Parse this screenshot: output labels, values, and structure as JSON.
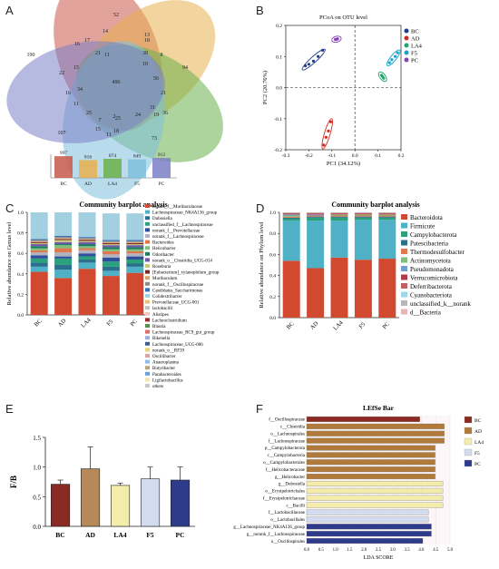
{
  "panel_labels": {
    "a": "A",
    "b": "B",
    "c": "C",
    "d": "D",
    "e": "E",
    "f": "F"
  },
  "colors": {
    "BC": "#c8584a",
    "AD": "#e8b04f",
    "LA4": "#6ab04c",
    "F5": "#7ec0dc",
    "PC": "#7a7fc6",
    "BC_dark": "#8b2a22",
    "AD_dark": "#b07a3a",
    "LA4_light": "#f3ecaa",
    "F5_light": "#d3dcef",
    "PC_dark": "#2e3a8a"
  },
  "venn": {
    "groups": [
      "BC",
      "AD",
      "LA4",
      "F5",
      "PC"
    ],
    "numbers": [
      "52",
      "14",
      "13",
      "18",
      "190",
      "16",
      "17",
      "11",
      "21",
      "8",
      "94",
      "38",
      "10",
      "56",
      "22",
      "15",
      "496",
      "21",
      "16",
      "34",
      "11",
      "31",
      "36",
      "25",
      "7",
      "2",
      "25",
      "24",
      "19",
      "107",
      "15",
      "11",
      "18",
      "73"
    ],
    "bar_values": [
      "997",
      "816",
      "874",
      "849",
      "912"
    ]
  },
  "chart_data": [
    {
      "type": "scatter",
      "title": "PCoA on OTU level",
      "xlabel": "PC1 (34.12%)",
      "ylabel": "PC2 (20.76%)",
      "xlim": [
        -0.3,
        0.2
      ],
      "ylim": [
        -0.2,
        0.2
      ],
      "xticks": [
        "-0.3",
        "-0.2",
        "-0.1",
        "0.0",
        "0.1",
        "0.2"
      ],
      "yticks": [
        "-0.2",
        "-0.1",
        "0.0",
        "0.1",
        "0.2"
      ],
      "series": [
        {
          "name": "BC",
          "points": [
            [
              -0.14,
              0.12
            ],
            [
              -0.16,
              0.1
            ],
            [
              -0.18,
              0.085
            ],
            [
              -0.2,
              0.075
            ],
            [
              -0.215,
              0.07
            ]
          ]
        },
        {
          "name": "AD",
          "points": [
            [
              -0.105,
              -0.11
            ],
            [
              -0.115,
              -0.14
            ],
            [
              -0.125,
              -0.16
            ],
            [
              -0.135,
              -0.185
            ]
          ]
        },
        {
          "name": "LA4",
          "points": [
            [
              0.115,
              0.04
            ],
            [
              0.12,
              0.035
            ],
            [
              0.125,
              0.03
            ]
          ]
        },
        {
          "name": "F5",
          "points": [
            [
              0.15,
              0.08
            ],
            [
              0.16,
              0.09
            ],
            [
              0.175,
              0.1
            ],
            [
              0.185,
              0.112
            ]
          ]
        },
        {
          "name": "PC",
          "points": [
            [
              -0.085,
              0.155
            ],
            [
              -0.08,
              0.155
            ],
            [
              -0.075,
              0.157
            ]
          ]
        }
      ]
    },
    {
      "type": "bar",
      "stacked": true,
      "title": "Community barplot analysis",
      "ylabel": "Relative abundance on Genus level",
      "categories": [
        "BC",
        "AD",
        "LA4",
        "F5",
        "PC"
      ],
      "yticks": [
        "0.0",
        "0.2",
        "0.4",
        "0.6",
        "0.8",
        "1.0"
      ],
      "legend": [
        "norank_f__Muribaculaceae",
        "Lachnospiraceae_NK4A136_group",
        "Dubosiella",
        "unclassified_f__Lachnospiraceae",
        "norank_f__Prevotellaceae",
        "norank_f__Lachnospiraceae",
        "Bacteroides",
        "Helicobacter",
        "Odoribacter",
        "norank_o__Clostridia_UCG-014",
        "Roseburia",
        "[Eubacterium]_xylanophilum_group",
        "Muribaculum",
        "norank_f__Oscillospiraceae",
        "Candidatus_Saccharimonas",
        "Colidextribacter",
        "Prevotellaceae_UCG-001",
        "lactobacilli",
        "Alistipes",
        "Lachnoclostridium",
        "Blautia",
        "Lachnospiraceae_RC9_gut_group",
        "Rikenella",
        "Lachnospiraceae_UCG-006",
        "norank_o__RF39",
        "Oscillibacter",
        "Anaeroplasma",
        "Butyribacter",
        "Parabacteroides",
        "Ligilactobacillus",
        "others"
      ],
      "series": [
        {
          "name": "norank_f__Muribaculaceae",
          "values": [
            0.42,
            0.36,
            0.45,
            0.38,
            0.41
          ]
        },
        {
          "name": "Lachnospiraceae_NK4A136_group",
          "values": [
            0.05,
            0.08,
            0.06,
            0.05,
            0.06
          ]
        },
        {
          "name": "Dubosiella",
          "values": [
            0.04,
            0.05,
            0.03,
            0.04,
            0.03
          ]
        },
        {
          "name": "unclassified_f__Lachnospiraceae",
          "values": [
            0.04,
            0.06,
            0.03,
            0.05,
            0.04
          ]
        },
        {
          "name": "norank_f__Prevotellaceae",
          "values": [
            0.03,
            0.02,
            0.03,
            0.04,
            0.03
          ]
        },
        {
          "name": "norank_f__Lachnospiraceae",
          "values": [
            0.03,
            0.04,
            0.03,
            0.03,
            0.03
          ]
        },
        {
          "name": "Bacteroides",
          "values": [
            0.02,
            0.04,
            0.02,
            0.03,
            0.02
          ]
        },
        {
          "name": "Helicobacter",
          "values": [
            0.02,
            0.03,
            0.02,
            0.02,
            0.02
          ]
        },
        {
          "name": "Odoribacter",
          "values": [
            0.02,
            0.01,
            0.02,
            0.02,
            0.02
          ]
        },
        {
          "name": "norank_o__Clostridia_UCG-014",
          "values": [
            0.02,
            0.02,
            0.02,
            0.02,
            0.02
          ]
        },
        {
          "name": "Roseburia",
          "values": [
            0.01,
            0.02,
            0.01,
            0.01,
            0.01
          ]
        },
        {
          "name": "[Eubacterium]_xylanophilum_group",
          "values": [
            0.01,
            0.01,
            0.01,
            0.01,
            0.01
          ]
        },
        {
          "name": "Muribaculum",
          "values": [
            0.01,
            0.01,
            0.01,
            0.01,
            0.01
          ]
        },
        {
          "name": "norank_f__Oscillospiraceae",
          "values": [
            0.01,
            0.01,
            0.01,
            0.01,
            0.01
          ]
        },
        {
          "name": "Candidatus_Saccharimonas",
          "values": [
            0.01,
            0.01,
            0.01,
            0.01,
            0.01
          ]
        },
        {
          "name": "others",
          "values": [
            0.26,
            0.23,
            0.24,
            0.26,
            0.26
          ]
        }
      ]
    },
    {
      "type": "bar",
      "stacked": true,
      "title": "Community barplot analysis",
      "ylabel": "Relative abundance on Phylum level",
      "categories": [
        "BC",
        "AD",
        "LA4",
        "F5",
        "PC"
      ],
      "yticks": [
        "0.0",
        "0.2",
        "0.4",
        "0.6",
        "0.8",
        "1.0"
      ],
      "legend": [
        "Bacteroidota",
        "Firmicute",
        "Campylobacterota",
        "Patescibacteria",
        "Thermodesulfobacter",
        "Actinomycetota",
        "Pseudomonadota",
        "Verrucomicrobiota",
        "Deferribacterota",
        "Cyanobacteriota",
        "unclassified_k__norank",
        "d__Bacteria"
      ],
      "series": [
        {
          "name": "Bacteroidota",
          "values": [
            0.54,
            0.47,
            0.57,
            0.55,
            0.56
          ]
        },
        {
          "name": "Firmicute",
          "values": [
            0.38,
            0.45,
            0.35,
            0.38,
            0.37
          ]
        },
        {
          "name": "Campylobacterota",
          "values": [
            0.02,
            0.03,
            0.03,
            0.02,
            0.02
          ]
        },
        {
          "name": "Patescibacteria",
          "values": [
            0.01,
            0.01,
            0.01,
            0.01,
            0.01
          ]
        },
        {
          "name": "Thermodesulfobacter",
          "values": [
            0.01,
            0.01,
            0.01,
            0.01,
            0.01
          ]
        },
        {
          "name": "Actinomycetota",
          "values": [
            0.01,
            0.0,
            0.01,
            0.01,
            0.01
          ]
        },
        {
          "name": "Pseudomonadota",
          "values": [
            0.01,
            0.01,
            0.0,
            0.0,
            0.0
          ]
        },
        {
          "name": "Verrucomicrobiota",
          "values": [
            0.01,
            0.01,
            0.01,
            0.01,
            0.01
          ]
        },
        {
          "name": "Deferribacterota",
          "values": [
            0.005,
            0.005,
            0.005,
            0.005,
            0.005
          ]
        },
        {
          "name": "Cyanobacteriota",
          "values": [
            0.003,
            0.003,
            0.003,
            0.003,
            0.003
          ]
        },
        {
          "name": "unclassified_k__norank",
          "values": [
            0.001,
            0.001,
            0.001,
            0.001,
            0.001
          ]
        },
        {
          "name": "d__Bacteria",
          "values": [
            0.001,
            0.001,
            0.001,
            0.001,
            0.001
          ]
        }
      ]
    },
    {
      "type": "bar",
      "ylabel": "F/B",
      "categories": [
        "BC",
        "AD",
        "LA4",
        "F5",
        "PC"
      ],
      "values": [
        0.71,
        0.97,
        0.69,
        0.8,
        0.78
      ],
      "errors": [
        0.07,
        0.37,
        0.04,
        0.2,
        0.22
      ],
      "ylim": [
        0,
        1.5
      ],
      "yticks": [
        "0.0",
        "0.5",
        "1.0",
        "1.5"
      ]
    },
    {
      "type": "bar",
      "orientation": "horizontal",
      "title": "LEfSe Bar",
      "xlabel": "LDA SCORE",
      "xlim": [
        0,
        5
      ],
      "xticks": [
        "0.0",
        "0.5",
        "1.0",
        "1.5",
        "2.0",
        "2.5",
        "3.0",
        "3.5",
        "4.0",
        "4.5",
        "5.0"
      ],
      "legend": [
        "BC",
        "AD",
        "LA4",
        "F5",
        "PC"
      ],
      "categories": [
        "f__Oscillospiraceae",
        "c__Clostridia",
        "o__Lachnospirales",
        "f__Lachnospiraceae",
        "p__Campylobacterota",
        "c__Campylobacteria",
        "o__Campylobacterales",
        "f__Helicobacteraceae",
        "g__Helicobacter",
        "g__Dubosiella",
        "o__Erysipelotrichales",
        "f__Erysipelotrichaceae",
        "c__Bacilli",
        "f__Lactobacillaceae",
        "o__Lactobacillales",
        "g__Lachnospiraceae_NK4A136_group",
        "g__norank_f__Lachnospiraceae",
        "o__Oscillospirales"
      ],
      "groups": [
        "BC",
        "AD",
        "AD",
        "AD",
        "AD",
        "AD",
        "AD",
        "AD",
        "AD",
        "LA4",
        "LA4",
        "LA4",
        "LA4",
        "F5",
        "F5",
        "PC",
        "PC",
        "PC"
      ],
      "values": [
        3.95,
        4.8,
        4.8,
        4.8,
        4.48,
        4.48,
        4.48,
        4.48,
        4.48,
        4.75,
        4.75,
        4.75,
        4.75,
        4.25,
        4.25,
        4.35,
        4.35,
        4.05
      ]
    }
  ]
}
